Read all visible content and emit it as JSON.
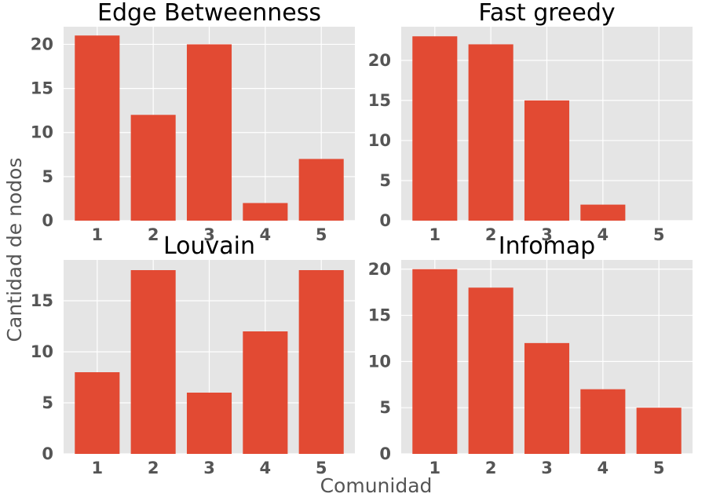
{
  "figure": {
    "xlabel": "Comunidad",
    "ylabel": "Cantidad de nodos",
    "bar_color": "#E24A33",
    "panel_background": "#E5E5E5",
    "grid_color": "#FFFFFF",
    "tick_color": "#555555"
  },
  "chart_data": [
    {
      "type": "bar",
      "title": "Edge Betweenness",
      "categories": [
        "1",
        "2",
        "3",
        "4",
        "5"
      ],
      "values": [
        21,
        12,
        20,
        2,
        7
      ],
      "yticks": [
        0,
        5,
        10,
        15,
        20
      ],
      "ylim": [
        0,
        22
      ],
      "grid": true
    },
    {
      "type": "bar",
      "title": "Fast greedy",
      "categories": [
        "1",
        "2",
        "3",
        "4",
        "5"
      ],
      "values": [
        23,
        22,
        15,
        2,
        0
      ],
      "yticks": [
        0,
        5,
        10,
        15,
        20
      ],
      "ylim": [
        0,
        24.2
      ],
      "grid": true
    },
    {
      "type": "bar",
      "title": "Louvain",
      "categories": [
        "1",
        "2",
        "3",
        "4",
        "5"
      ],
      "values": [
        8,
        18,
        6,
        12,
        18
      ],
      "yticks": [
        0,
        5,
        10,
        15
      ],
      "ylim": [
        0,
        19
      ],
      "grid": true
    },
    {
      "type": "bar",
      "title": "Infomap",
      "categories": [
        "1",
        "2",
        "3",
        "4",
        "5"
      ],
      "values": [
        20,
        18,
        12,
        7,
        5
      ],
      "yticks": [
        0,
        5,
        10,
        15,
        20
      ],
      "ylim": [
        0,
        21
      ],
      "grid": true
    }
  ]
}
